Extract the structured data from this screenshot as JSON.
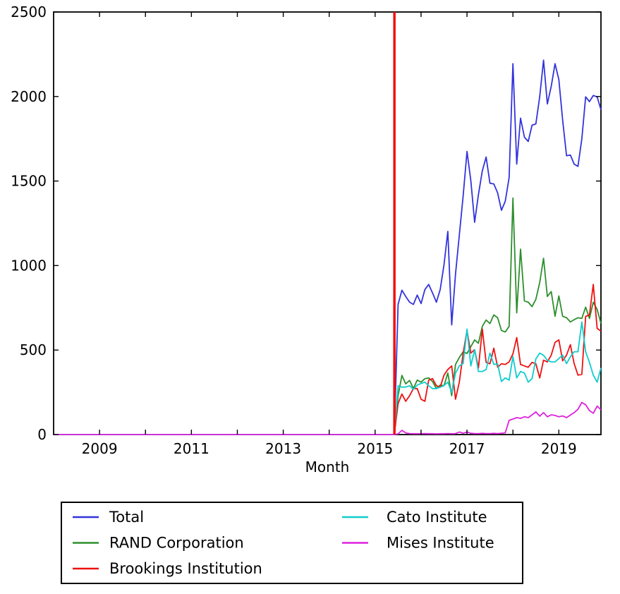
{
  "chart_data": {
    "type": "line",
    "title": "",
    "xlabel": "Month",
    "ylabel": "",
    "x_axis": {
      "start_month": "2008-01",
      "end_month": "2019-12",
      "tick_years": [
        2009,
        2010,
        2011,
        2012,
        2013,
        2014,
        2015,
        2016,
        2017,
        2018,
        2019
      ],
      "labeled_tick_years": [
        2009,
        2011,
        2013,
        2015,
        2017,
        2019
      ]
    },
    "y_axis": {
      "ticks": [
        0,
        500,
        1000,
        1500,
        2000,
        2500
      ],
      "ylim": [
        0,
        2500
      ]
    },
    "grid": false,
    "legend_position": "below-plot, 2 columns, boxed",
    "vline": {
      "x_year": 2015.42,
      "color": "#ee1111"
    },
    "months_zero_before_data": 90,
    "data_start_month": "2015-07",
    "series": [
      {
        "name": "Total",
        "color": "#3333dd",
        "values": [
          770,
          854,
          817,
          783,
          770,
          825,
          775,
          858,
          888,
          838,
          783,
          858,
          1005,
          1202,
          649,
          950,
          1180,
          1411,
          1675,
          1503,
          1256,
          1420,
          1560,
          1642,
          1487,
          1483,
          1430,
          1327,
          1380,
          1520,
          2194,
          1600,
          1872,
          1759,
          1734,
          1830,
          1838,
          2000,
          2215,
          1956,
          2060,
          2194,
          2100,
          1860,
          1650,
          1654,
          1600,
          1587,
          1750,
          1998,
          1970,
          2006,
          1998,
          1922
        ]
      },
      {
        "name": "RAND Corporation",
        "color": "#2d8f2d",
        "values": [
          230,
          350,
          300,
          320,
          272,
          322,
          310,
          331,
          335,
          314,
          272,
          293,
          289,
          364,
          230,
          415,
          456,
          490,
          480,
          520,
          560,
          540,
          640,
          678,
          657,
          708,
          691,
          616,
          607,
          640,
          1399,
          720,
          1097,
          790,
          783,
          757,
          800,
          900,
          1043,
          817,
          846,
          700,
          820,
          700,
          691,
          666,
          680,
          691,
          687,
          754,
          687,
          783,
          740,
          658
        ]
      },
      {
        "name": "Brookings Institution",
        "color": "#ee1111",
        "values": [
          184,
          240,
          197,
          230,
          272,
          272,
          209,
          197,
          322,
          331,
          289,
          281,
          352,
          385,
          406,
          209,
          310,
          480,
          616,
          482,
          502,
          394,
          624,
          427,
          419,
          511,
          398,
          419,
          415,
          430,
          477,
          574,
          415,
          406,
          398,
          427,
          419,
          335,
          440,
          430,
          470,
          545,
          560,
          436,
          470,
          532,
          420,
          352,
          356,
          699,
          708,
          888,
          628,
          612
        ]
      },
      {
        "name": "Cato Institute",
        "color": "#11cccc",
        "values": [
          289,
          281,
          281,
          289,
          268,
          293,
          302,
          310,
          289,
          272,
          272,
          280,
          290,
          310,
          250,
          364,
          406,
          420,
          624,
          406,
          502,
          373,
          373,
          385,
          482,
          415,
          419,
          314,
          335,
          322,
          461,
          335,
          373,
          364,
          310,
          331,
          448,
          482,
          469,
          440,
          430,
          430,
          450,
          470,
          420,
          460,
          490,
          490,
          666,
          490,
          427,
          352,
          310,
          394
        ]
      },
      {
        "name": "Mises Institute",
        "color": "#dd22dd",
        "values": [
          4,
          25,
          10,
          6,
          5,
          5,
          5,
          6,
          5,
          5,
          4,
          5,
          5,
          6,
          5,
          6,
          15,
          8,
          15,
          8,
          6,
          6,
          7,
          6,
          6,
          7,
          6,
          8,
          10,
          84,
          92,
          100,
          96,
          105,
          100,
          117,
          134,
          109,
          130,
          105,
          117,
          113,
          105,
          110,
          100,
          115,
          130,
          150,
          190,
          176,
          142,
          126,
          168,
          147
        ]
      }
    ]
  }
}
